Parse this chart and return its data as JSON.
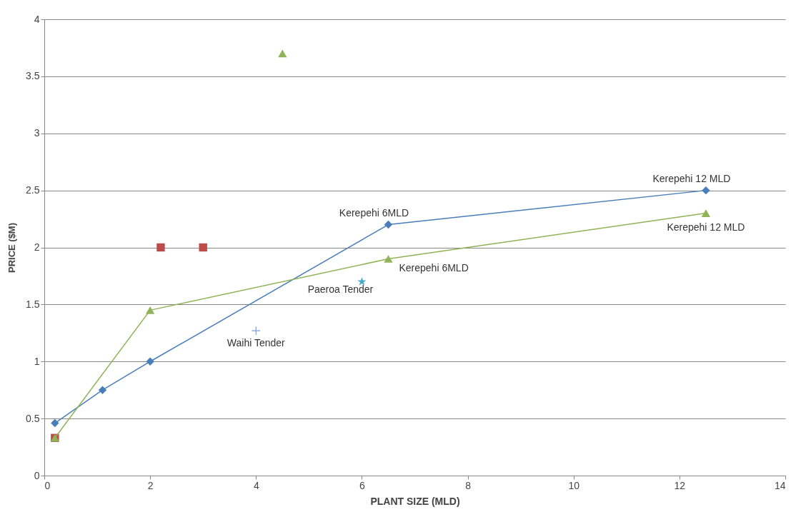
{
  "chart_data": {
    "type": "line",
    "xlabel": "PLANT SIZE (MLD)",
    "ylabel": "PRICE ($M)",
    "xlim": [
      0,
      14
    ],
    "xticks": [
      0,
      2,
      4,
      6,
      8,
      10,
      12,
      14
    ],
    "ylim": [
      0,
      4
    ],
    "yticks": [
      0,
      0.5,
      1,
      1.5,
      2,
      2.5,
      3,
      3.5,
      4
    ],
    "grid": "y",
    "line_style": "solid",
    "series": [
      {
        "type": "line",
        "marker": "diamond",
        "color": "#4a7ebb",
        "x": [
          0.2,
          1.1,
          2,
          6.5,
          12.5
        ],
        "values": [
          0.46,
          0.75,
          1.0,
          2.2,
          2.5
        ]
      },
      {
        "type": "line",
        "marker": "triangle",
        "color": "#8fb356",
        "x": [
          0.2,
          2,
          6.5,
          12.5
        ],
        "values": [
          0.33,
          1.45,
          1.9,
          2.3
        ]
      },
      {
        "type": "scatter",
        "marker": "triangle",
        "color": "#8fb356",
        "x": [
          4.5
        ],
        "values": [
          3.7
        ]
      },
      {
        "type": "scatter",
        "marker": "square",
        "color": "#be4b48",
        "x": [
          0.2,
          2.2,
          3.0
        ],
        "values": [
          0.33,
          2.0,
          2.0
        ]
      },
      {
        "type": "scatter",
        "marker": "star",
        "color": "#4bacc6",
        "x": [
          6.0
        ],
        "values": [
          1.7
        ]
      },
      {
        "type": "scatter",
        "marker": "cross",
        "color": "#7f9fd3",
        "x": [
          4.0
        ],
        "values": [
          1.27
        ]
      }
    ],
    "annotations": [
      {
        "text": "Kerepehi 12 MLD",
        "x": 12.5,
        "y": 2.5
      },
      {
        "text": "Kerepehi 6MLD",
        "x": 6.5,
        "y": 2.2
      },
      {
        "text": "Kerepehi 12 MLD",
        "x": 12.5,
        "y": 2.3
      },
      {
        "text": "Kerepehi 6MLD",
        "x": 6.5,
        "y": 1.9
      },
      {
        "text": "Paeroa Tender",
        "x": 6.0,
        "y": 1.7
      },
      {
        "text": "Waihi Tender",
        "x": 4.0,
        "y": 1.27
      }
    ]
  }
}
